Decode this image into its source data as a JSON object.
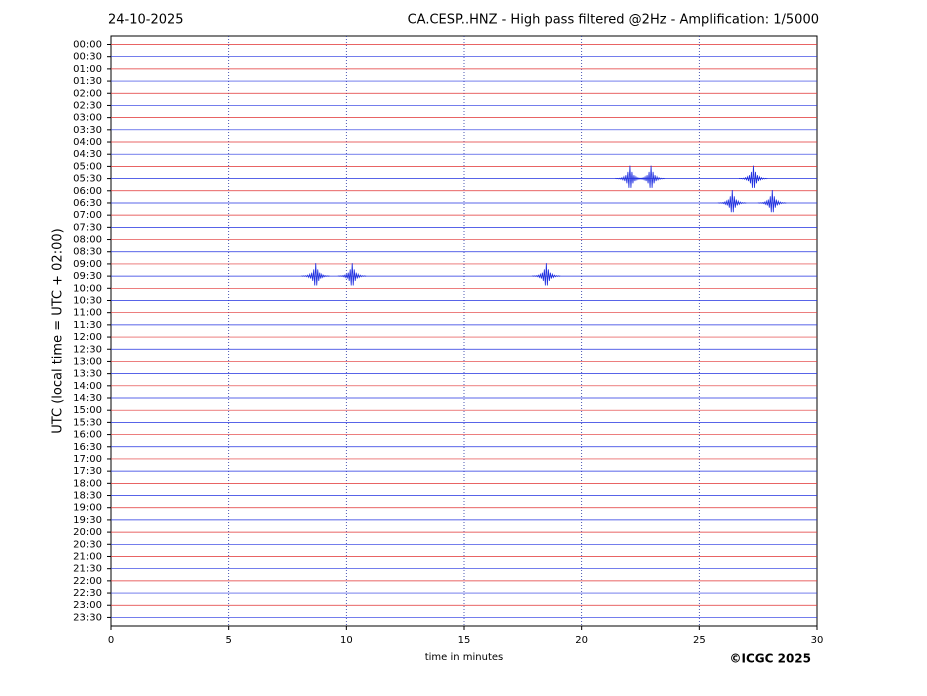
{
  "chart_data": {
    "type": "helicorder",
    "date": "24-10-2025",
    "title": "CA.CESP..HNZ - High pass filtered @2Hz - Amplification: 1/5000",
    "ylabel": "UTC (local time = UTC + 02:00)",
    "xlabel": "time in minutes",
    "credit": "©ICGC 2025",
    "categories": [
      "00:00",
      "00:30",
      "01:00",
      "01:30",
      "02:00",
      "02:30",
      "03:00",
      "03:30",
      "04:00",
      "04:30",
      "05:00",
      "05:30",
      "06:00",
      "06:30",
      "07:00",
      "07:30",
      "08:00",
      "08:30",
      "09:00",
      "09:30",
      "10:00",
      "10:30",
      "11:00",
      "11:30",
      "12:00",
      "12:30",
      "13:00",
      "13:30",
      "14:00",
      "14:30",
      "15:00",
      "15:30",
      "16:00",
      "16:30",
      "17:00",
      "17:30",
      "18:00",
      "18:30",
      "19:00",
      "19:30",
      "20:00",
      "20:30",
      "21:00",
      "21:30",
      "22:00",
      "22:30",
      "23:00",
      "23:30"
    ],
    "colors": [
      "#e03030",
      "#2030e0"
    ],
    "xlim": [
      0,
      30
    ],
    "xticks": [
      0,
      5,
      10,
      15,
      20,
      25,
      30
    ],
    "grid": true,
    "events": [
      {
        "time": "05:30",
        "minutes": [
          22.05,
          22.95,
          27.3
        ]
      },
      {
        "time": "06:30",
        "minutes": [
          26.4,
          28.1
        ]
      },
      {
        "time": "09:30",
        "minutes": [
          8.7,
          10.25,
          18.5
        ]
      }
    ]
  }
}
